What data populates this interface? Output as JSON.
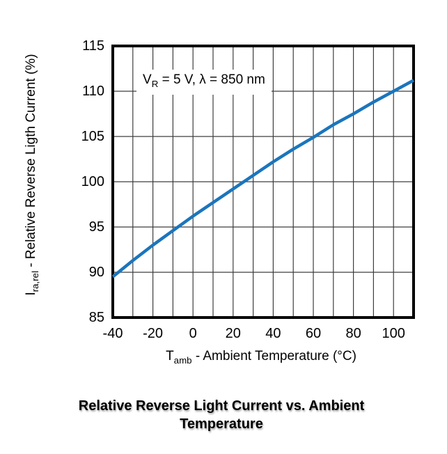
{
  "figure": {
    "caption_line1": "Relative Reverse Light Current vs. Ambient",
    "caption_line2": "Temperature"
  },
  "axes": {
    "y_title": {
      "symbol": "I",
      "subscript": "ra,rel",
      "rest": " - Relative Reverse Ligth Current (%)"
    },
    "x_title": {
      "symbol": "T",
      "subscript": "amb",
      "rest": " - Ambient Temperature (°C)"
    }
  },
  "annotation": {
    "symbol": "V",
    "subscript": "R",
    "rest": " = 5 V, λ = 850 nm"
  },
  "chart_data": {
    "type": "line",
    "title": "Relative Reverse Light Current vs. Ambient Temperature",
    "xlabel": "Tamb - Ambient Temperature (°C)",
    "ylabel": "Ira,rel - Relative Reverse Ligth Current (%)",
    "annotation_text": "VR = 5 V, λ = 850 nm",
    "x": [
      -40,
      -30,
      -20,
      -10,
      0,
      10,
      20,
      30,
      40,
      50,
      60,
      70,
      80,
      90,
      100,
      110
    ],
    "y": [
      89.5,
      91.3,
      93.0,
      94.6,
      96.2,
      97.7,
      99.2,
      100.7,
      102.2,
      103.6,
      104.9,
      106.3,
      107.5,
      108.8,
      110.0,
      111.2
    ],
    "xlim": [
      -40,
      110
    ],
    "ylim": [
      85,
      115
    ],
    "xtick_labels": [
      "-40",
      "-20",
      "0",
      "20",
      "40",
      "60",
      "80",
      "100"
    ],
    "xtick_values": [
      -40,
      -20,
      0,
      20,
      40,
      60,
      80,
      100
    ],
    "ytick_labels": [
      "85",
      "90",
      "95",
      "100",
      "105",
      "110",
      "115"
    ],
    "ytick_values": [
      85,
      90,
      95,
      100,
      105,
      110,
      115
    ],
    "x_grid_step": 10,
    "y_grid_step": 5,
    "grid": "on",
    "legend": "none",
    "line_color": "#1b75bc",
    "grid_color": "#3d3d3d",
    "frame_color": "#000000",
    "background": "#ffffff"
  }
}
